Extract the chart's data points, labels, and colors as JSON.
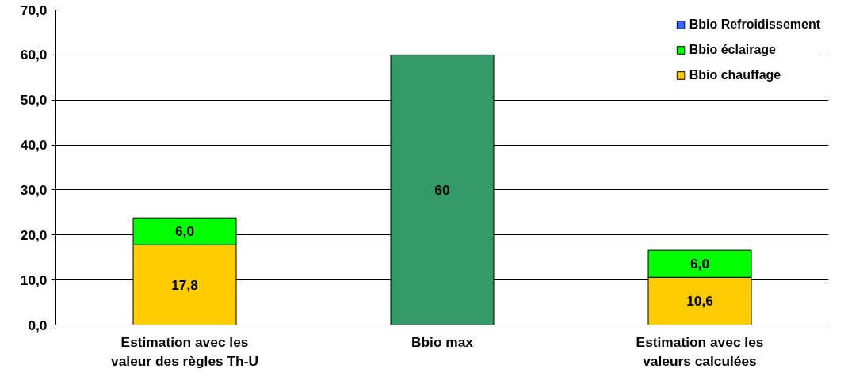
{
  "chart_data": {
    "type": "bar",
    "stacked": true,
    "categories": [
      "Estimation avec les\nvaleur des règles Th-U",
      "Bbio max",
      "Estimation avec les\nvaleurs calculées"
    ],
    "series": [
      {
        "name": "Bbio chauffage",
        "color": "#ffcc00",
        "values": [
          17.8,
          null,
          10.6
        ],
        "value_labels": [
          "17,8",
          null,
          "10,6"
        ]
      },
      {
        "name": "Bbio éclairage",
        "color": "#00ff00",
        "values": [
          6.0,
          null,
          6.0
        ],
        "value_labels": [
          "6,0",
          null,
          "6,0"
        ]
      },
      {
        "name": "Bbio Refroidissement",
        "color": "#3366ff",
        "values": [
          null,
          null,
          null
        ]
      },
      {
        "color": "#339966",
        "values": [
          null,
          60,
          null
        ],
        "value_labels": [
          null,
          "60",
          null
        ]
      }
    ],
    "ylim": [
      0,
      70
    ],
    "yticks": [
      {
        "value": 0,
        "label": "0,0"
      },
      {
        "value": 10,
        "label": "10,0"
      },
      {
        "value": 20,
        "label": "20,0"
      },
      {
        "value": 30,
        "label": "30,0"
      },
      {
        "value": 40,
        "label": "40,0"
      },
      {
        "value": 50,
        "label": "50,0"
      },
      {
        "value": 60,
        "label": "60,0"
      },
      {
        "value": 70,
        "label": "70,0"
      }
    ],
    "grid": "y",
    "legend": "top right"
  }
}
